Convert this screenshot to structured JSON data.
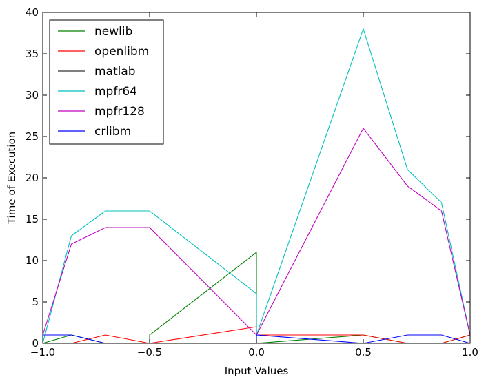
{
  "chart_data": {
    "type": "line",
    "title": "",
    "xlabel": "Input Values",
    "ylabel": "Time of Execution",
    "xlim": [
      -1.0,
      1.0
    ],
    "ylim": [
      0,
      40
    ],
    "grid": false,
    "legend_position": "top-left",
    "x_ticks": [
      -1.0,
      -0.5,
      0.0,
      0.5,
      1.0
    ],
    "x_tick_labels": [
      "−1.0",
      "−0.5",
      "0.0",
      "0.5",
      "1.0"
    ],
    "y_ticks": [
      0,
      5,
      10,
      15,
      20,
      25,
      30,
      35,
      40
    ],
    "y_tick_labels": [
      "0",
      "5",
      "10",
      "15",
      "20",
      "25",
      "30",
      "35",
      "40"
    ],
    "series": [
      {
        "name": "newlib",
        "color": "#008000",
        "points": [
          [
            -1.0,
            0
          ],
          [
            -0.866,
            1
          ],
          [
            -0.707,
            0
          ],
          [
            -0.5,
            0
          ],
          [
            -0.5,
            1
          ],
          [
            0.0,
            11
          ],
          [
            0.0,
            0
          ],
          [
            0.5,
            1
          ],
          [
            0.707,
            0
          ],
          [
            0.866,
            0
          ],
          [
            1.0,
            1
          ]
        ]
      },
      {
        "name": "openlibm",
        "color": "#ff0000",
        "points": [
          [
            -1.0,
            0
          ],
          [
            -0.866,
            0
          ],
          [
            -0.707,
            1
          ],
          [
            -0.5,
            0
          ],
          [
            0.0,
            2
          ],
          [
            0.0,
            1
          ],
          [
            0.5,
            1
          ],
          [
            0.707,
            0
          ],
          [
            0.866,
            0
          ],
          [
            1.0,
            1
          ]
        ]
      },
      {
        "name": "matlab",
        "color": "#333333",
        "points": [
          [
            -1.0,
            0
          ],
          [
            -0.866,
            0
          ],
          [
            -0.707,
            0
          ],
          [
            -0.5,
            0
          ],
          [
            0.0,
            0
          ],
          [
            0.5,
            0
          ],
          [
            0.707,
            0
          ],
          [
            0.866,
            0
          ],
          [
            1.0,
            0
          ]
        ]
      },
      {
        "name": "mpfr64",
        "color": "#00bfbf",
        "points": [
          [
            -1.0,
            0
          ],
          [
            -0.866,
            13
          ],
          [
            -0.707,
            16
          ],
          [
            -0.5,
            16
          ],
          [
            0.0,
            6
          ],
          [
            0.0,
            1
          ],
          [
            0.5,
            38
          ],
          [
            0.707,
            21
          ],
          [
            0.866,
            17
          ],
          [
            1.0,
            1
          ]
        ]
      },
      {
        "name": "mpfr128",
        "color": "#bf00bf",
        "points": [
          [
            -1.0,
            1
          ],
          [
            -0.866,
            12
          ],
          [
            -0.707,
            14
          ],
          [
            -0.5,
            14
          ],
          [
            0.0,
            1
          ],
          [
            0.5,
            26
          ],
          [
            0.707,
            19
          ],
          [
            0.866,
            16
          ],
          [
            1.0,
            1
          ]
        ]
      },
      {
        "name": "crlibm",
        "color": "#0000ff",
        "points": [
          [
            -1.0,
            1
          ],
          [
            -0.866,
            1
          ],
          [
            -0.707,
            0
          ],
          [
            -0.5,
            0
          ],
          [
            0.0,
            0
          ],
          [
            0.0,
            1
          ],
          [
            0.5,
            0
          ],
          [
            0.707,
            1
          ],
          [
            0.866,
            1
          ],
          [
            1.0,
            0
          ]
        ]
      }
    ]
  }
}
